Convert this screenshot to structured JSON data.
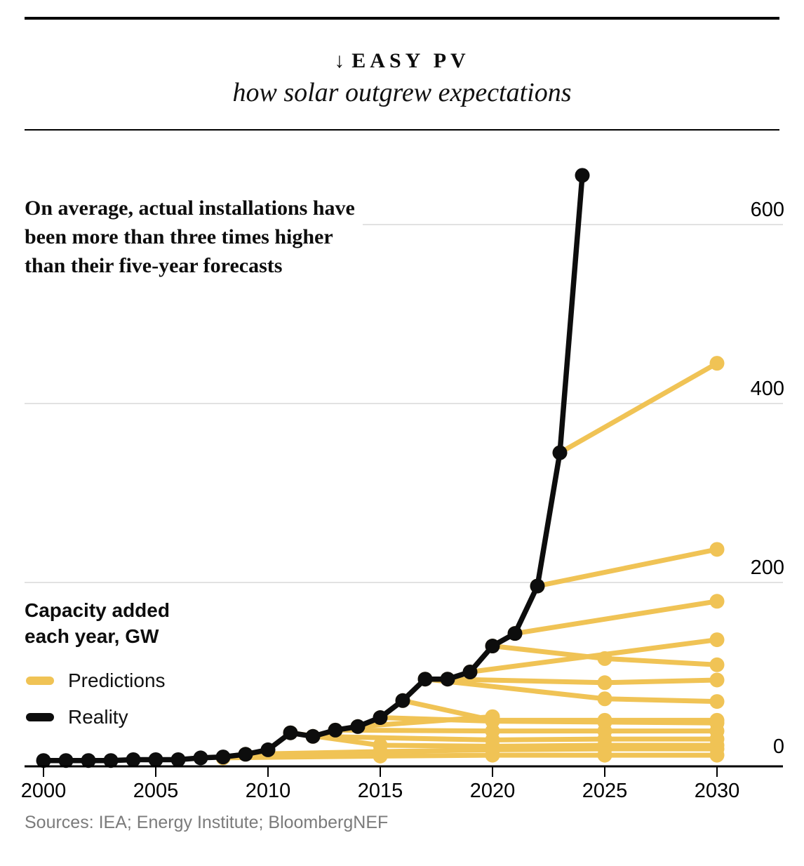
{
  "header": {
    "arrow": "↓",
    "kicker": "EASY PV",
    "subtitle": "how solar outgrew expectations"
  },
  "annotation": "On average, actual installations have been more than three times higher than their five-year forecasts",
  "unit_label": "Capacity added each year, GW",
  "legend": [
    {
      "label": "Predictions",
      "color": "#F0C355"
    },
    {
      "label": "Reality",
      "color": "#0d0d0d"
    }
  ],
  "sources": "Sources: IEA; Energy Institute; BloombergNEF",
  "colors": {
    "prediction": "#F0C355",
    "reality": "#0d0d0d",
    "gridline": "#d8d8d8",
    "axis": "#000000",
    "sources_text": "#7b7b7b"
  },
  "chart_data": {
    "type": "line",
    "title": "EASY PV — how solar outgrew expectations",
    "ylabel": "Capacity added each year, GW",
    "xlabel": "",
    "x_ticks": [
      2000,
      2005,
      2010,
      2015,
      2020,
      2025,
      2030
    ],
    "y_ticks": [
      0,
      200,
      400,
      600
    ],
    "xlim": [
      2000,
      2030
    ],
    "ylim": [
      0,
      670
    ],
    "grid": "horizontal gridlines at 200, 400, 600 only; y-axis labels on right side above each line",
    "legend_position": "left middle of plot",
    "series": [
      {
        "name": "Reality",
        "color": "#0d0d0d",
        "x": [
          2000,
          2001,
          2002,
          2003,
          2004,
          2005,
          2006,
          2007,
          2008,
          2009,
          2010,
          2011,
          2012,
          2013,
          2014,
          2015,
          2016,
          2017,
          2018,
          2019,
          2020,
          2021,
          2022,
          2023,
          2024
        ],
        "values": [
          1,
          1,
          1,
          1,
          2,
          2,
          2,
          4,
          5,
          8,
          13,
          32,
          28,
          35,
          39,
          49,
          68,
          92,
          92,
          100,
          129,
          143,
          196,
          345,
          655
        ]
      },
      {
        "name": "Predictions",
        "color": "#F0C355",
        "note": "each line is one forecast vintage; points are [year, GW] with a dot at every vertex",
        "lines": [
          {
            "points": [
              [
                2008,
                4
              ],
              [
                2015,
                6
              ],
              [
                2020,
                7
              ],
              [
                2025,
                7
              ],
              [
                2030,
                7
              ]
            ]
          },
          {
            "points": [
              [
                2009,
                8
              ],
              [
                2015,
                11
              ],
              [
                2020,
                13
              ],
              [
                2025,
                14
              ],
              [
                2030,
                14
              ]
            ]
          },
          {
            "points": [
              [
                2011,
                32
              ],
              [
                2015,
                18
              ],
              [
                2020,
                17
              ],
              [
                2025,
                18
              ],
              [
                2030,
                18
              ]
            ]
          },
          {
            "points": [
              [
                2012,
                28
              ],
              [
                2020,
                24
              ],
              [
                2025,
                25
              ],
              [
                2030,
                25
              ]
            ]
          },
          {
            "points": [
              [
                2013,
                35
              ],
              [
                2020,
                34
              ],
              [
                2025,
                34
              ],
              [
                2030,
                34
              ]
            ]
          },
          {
            "points": [
              [
                2014,
                39
              ],
              [
                2020,
                50
              ]
            ]
          },
          {
            "points": [
              [
                2015,
                49
              ],
              [
                2020,
                45
              ],
              [
                2025,
                44
              ],
              [
                2030,
                43
              ]
            ]
          },
          {
            "points": [
              [
                2016,
                68
              ],
              [
                2020,
                46
              ],
              [
                2025,
                46
              ],
              [
                2030,
                46
              ]
            ]
          },
          {
            "points": [
              [
                2017,
                92
              ],
              [
                2025,
                70
              ],
              [
                2030,
                67
              ]
            ]
          },
          {
            "points": [
              [
                2018,
                92
              ],
              [
                2025,
                88
              ],
              [
                2030,
                91
              ]
            ]
          },
          {
            "points": [
              [
                2019,
                100
              ],
              [
                2030,
                136
              ]
            ]
          },
          {
            "points": [
              [
                2020,
                129
              ],
              [
                2025,
                115
              ],
              [
                2030,
                108
              ]
            ]
          },
          {
            "points": [
              [
                2021,
                143
              ],
              [
                2030,
                179
              ]
            ]
          },
          {
            "points": [
              [
                2022,
                196
              ],
              [
                2030,
                237
              ]
            ]
          },
          {
            "points": [
              [
                2023,
                345
              ],
              [
                2030,
                445
              ]
            ]
          }
        ]
      }
    ]
  }
}
